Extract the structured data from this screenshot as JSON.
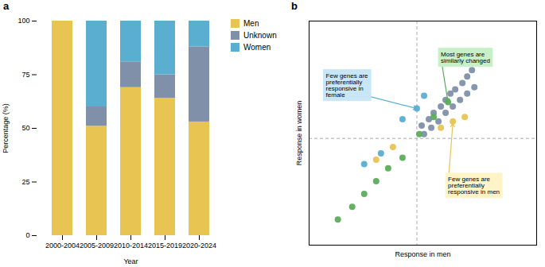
{
  "chart_data": [
    {
      "type": "bar",
      "title": "a",
      "stacked": true,
      "legend": "right",
      "categories": [
        "2000-2004",
        "2005-2009",
        "2010-2014",
        "2015-2019",
        "2020-2024"
      ],
      "series": [
        {
          "name": "Men",
          "color": "#E8C453",
          "values": [
            100,
            51,
            69,
            64,
            53
          ]
        },
        {
          "name": "Unknown",
          "color": "#8090A8",
          "values": [
            0,
            9,
            12,
            11,
            35
          ]
        },
        {
          "name": "Women",
          "color": "#5AAFD1",
          "values": [
            0,
            40,
            19,
            25,
            12
          ]
        }
      ],
      "xlabel": "Year",
      "ylabel": "Percentage (%)",
      "ylim": [
        0,
        100
      ],
      "yticks": [
        0,
        25,
        50,
        75,
        100
      ]
    },
    {
      "type": "scatter",
      "title": "b",
      "tick_labels": false,
      "xlabel": "Response in men",
      "ylabel": "Response in women",
      "xlim": [
        0.05,
        1.0
      ],
      "ylim": [
        0.0,
        1.05
      ],
      "vlines": [
        0.5
      ],
      "hlines": [
        0.5
      ],
      "series": [
        {
          "color": "#8090A8",
          "x": [
            0.52,
            0.55,
            0.57,
            0.6,
            0.62,
            0.64,
            0.66,
            0.69,
            0.71,
            0.73,
            0.53,
            0.56,
            0.59,
            0.62,
            0.65,
            0.68,
            0.71,
            0.74
          ],
          "values": [
            0.56,
            0.59,
            0.62,
            0.65,
            0.68,
            0.71,
            0.73,
            0.76,
            0.79,
            0.82,
            0.52,
            0.55,
            0.58,
            0.62,
            0.65,
            0.68,
            0.71,
            0.74
          ]
        },
        {
          "color": "#5CAD5C",
          "x": [
            0.17,
            0.23,
            0.28,
            0.33,
            0.38,
            0.44,
            0.51,
            0.57,
            0.63
          ],
          "values": [
            0.12,
            0.18,
            0.24,
            0.3,
            0.36,
            0.41,
            0.52,
            0.6,
            0.67
          ]
        },
        {
          "color": "#5AAFD1",
          "x": [
            0.5,
            0.53,
            0.44,
            0.28,
            0.35
          ],
          "values": [
            0.64,
            0.7,
            0.59,
            0.38,
            0.43
          ]
        },
        {
          "color": "#E8C453",
          "x": [
            0.33,
            0.4,
            0.6,
            0.65,
            0.7
          ],
          "values": [
            0.4,
            0.46,
            0.55,
            0.58,
            0.6
          ]
        }
      ],
      "annotations": [
        {
          "text": "Few genes are\npreferentially\nresponsive in\nfemale",
          "x": 0.5,
          "y": 0.64,
          "text_x": 0.12,
          "text_y": 0.75,
          "color": "#5AAFD1",
          "box_color": "#C8E6F5"
        },
        {
          "text": "Most genes are\nsimilarly changed",
          "x": 0.63,
          "y": 0.67,
          "text_x": 0.6,
          "text_y": 0.88,
          "color": "#5CAD5C",
          "box_color": "#C8F0C8"
        },
        {
          "text": "Few genes are\npreferentially\nresponsive in men",
          "x": 0.65,
          "y": 0.57,
          "text_x": 0.63,
          "text_y": 0.28,
          "color": "#E8C453",
          "box_color": "#FFF3C8"
        }
      ]
    }
  ]
}
